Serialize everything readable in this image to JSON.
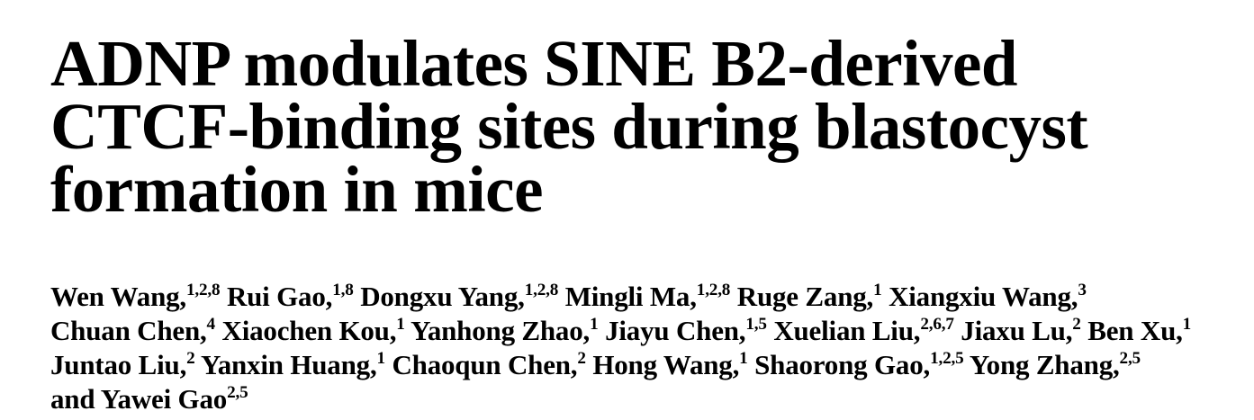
{
  "paper": {
    "title_lines": [
      "ADNP modulates SINE B2-derived",
      "CTCF-binding sites during blastocyst",
      "formation in mice"
    ],
    "author_lines": [
      [
        {
          "name": "Wen Wang,",
          "sup": "1,2,8"
        },
        {
          "name": "Rui Gao,",
          "sup": "1,8"
        },
        {
          "name": "Dongxu Yang,",
          "sup": "1,2,8"
        },
        {
          "name": "Mingli Ma,",
          "sup": "1,2,8"
        },
        {
          "name": "Ruge Zang,",
          "sup": "1"
        },
        {
          "name": "Xiangxiu Wang,",
          "sup": "3"
        }
      ],
      [
        {
          "name": "Chuan Chen,",
          "sup": "4"
        },
        {
          "name": "Xiaochen Kou,",
          "sup": "1"
        },
        {
          "name": "Yanhong Zhao,",
          "sup": "1"
        },
        {
          "name": "Jiayu Chen,",
          "sup": "1,5"
        },
        {
          "name": "Xuelian Liu,",
          "sup": "2,6,7"
        },
        {
          "name": "Jiaxu Lu,",
          "sup": "2"
        },
        {
          "name": "Ben Xu,",
          "sup": "1"
        }
      ],
      [
        {
          "name": "Juntao Liu,",
          "sup": "2"
        },
        {
          "name": "Yanxin Huang,",
          "sup": "1"
        },
        {
          "name": "Chaoqun Chen,",
          "sup": "2"
        },
        {
          "name": "Hong Wang,",
          "sup": "1"
        },
        {
          "name": "Shaorong Gao,",
          "sup": "1,2,5"
        },
        {
          "name": "Yong Zhang,",
          "sup": "2,5"
        }
      ],
      [
        {
          "name": "and Yawei Gao",
          "sup": "2,5"
        }
      ]
    ],
    "colors": {
      "text": "#000000",
      "background": "#ffffff"
    }
  }
}
